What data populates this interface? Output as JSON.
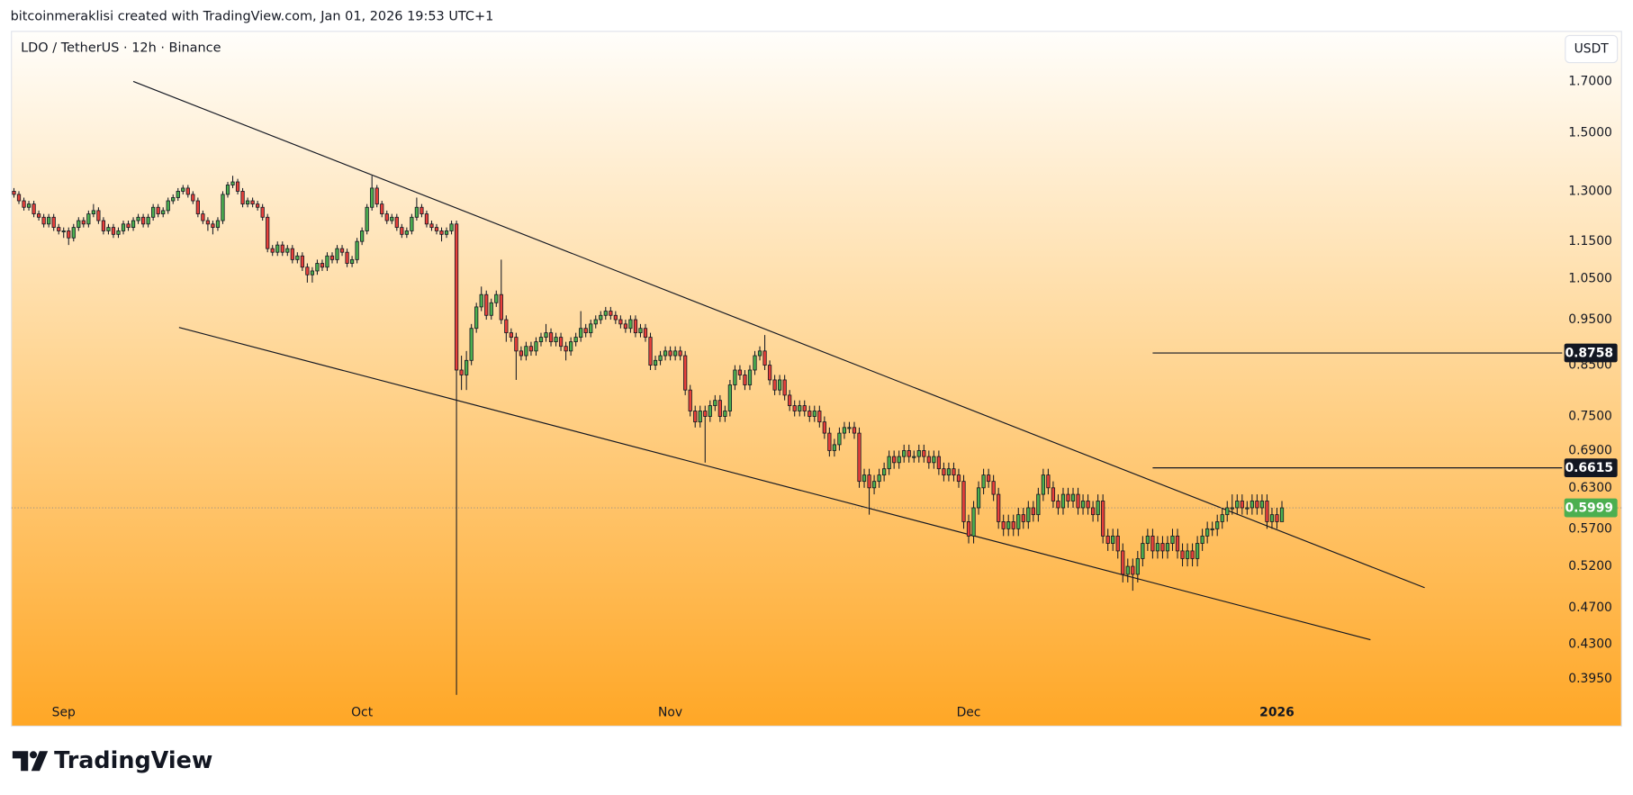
{
  "header": {
    "credit": "bitcoinmeraklisi created with TradingView.com, Jan 01, 2026 19:53 UTC+1"
  },
  "chart_data": {
    "type": "candlestick",
    "title": "LDO / TetherUS · 12h · Binance",
    "currency": "USDT",
    "log_scale": true,
    "up_color": "#4caf50",
    "down_color": "#e8403b",
    "open": [
      1.3,
      1.29,
      1.27,
      1.25,
      1.26,
      1.23,
      1.22,
      1.2,
      1.22,
      1.19,
      1.18,
      1.18,
      1.16,
      1.19,
      1.21,
      1.2,
      1.23,
      1.24,
      1.21,
      1.18,
      1.19,
      1.17,
      1.18,
      1.2,
      1.19,
      1.21,
      1.22,
      1.2,
      1.22,
      1.25,
      1.23,
      1.24,
      1.27,
      1.28,
      1.3,
      1.31,
      1.29,
      1.27,
      1.23,
      1.21,
      1.2,
      1.19,
      1.21,
      1.29,
      1.32,
      1.33,
      1.3,
      1.26,
      1.27,
      1.26,
      1.25,
      1.22,
      1.13,
      1.12,
      1.14,
      1.12,
      1.13,
      1.1,
      1.11,
      1.08,
      1.06,
      1.07,
      1.09,
      1.08,
      1.11,
      1.1,
      1.13,
      1.12,
      1.09,
      1.1,
      1.15,
      1.18,
      1.25,
      1.31,
      1.26,
      1.23,
      1.21,
      1.22,
      1.19,
      1.17,
      1.18,
      1.22,
      1.25,
      1.23,
      1.2,
      1.19,
      1.18,
      1.17,
      1.18,
      1.2,
      0.84,
      0.83,
      0.86,
      0.93,
      0.98,
      1.01,
      0.96,
      0.99,
      1.01,
      0.95,
      0.92,
      0.91,
      0.88,
      0.87,
      0.89,
      0.88,
      0.9,
      0.91,
      0.92,
      0.9,
      0.91,
      0.89,
      0.88,
      0.9,
      0.91,
      0.93,
      0.92,
      0.94,
      0.95,
      0.96,
      0.97,
      0.96,
      0.95,
      0.94,
      0.93,
      0.95,
      0.92,
      0.93,
      0.91,
      0.85,
      0.86,
      0.87,
      0.88,
      0.87,
      0.88,
      0.87,
      0.8,
      0.76,
      0.74,
      0.76,
      0.75,
      0.77,
      0.78,
      0.75,
      0.76,
      0.81,
      0.84,
      0.83,
      0.81,
      0.84,
      0.87,
      0.88,
      0.85,
      0.82,
      0.8,
      0.82,
      0.79,
      0.77,
      0.76,
      0.77,
      0.76,
      0.75,
      0.76,
      0.74,
      0.72,
      0.69,
      0.7,
      0.72,
      0.73,
      0.73,
      0.72,
      0.64,
      0.65,
      0.63,
      0.64,
      0.65,
      0.66,
      0.68,
      0.67,
      0.68,
      0.69,
      0.68,
      0.68,
      0.69,
      0.68,
      0.67,
      0.68,
      0.66,
      0.65,
      0.66,
      0.65,
      0.64,
      0.58,
      0.56,
      0.6,
      0.63,
      0.65,
      0.64,
      0.62,
      0.58,
      0.57,
      0.58,
      0.57,
      0.59,
      0.58,
      0.6,
      0.59,
      0.62,
      0.65,
      0.63,
      0.61,
      0.6,
      0.62,
      0.61,
      0.62,
      0.6,
      0.61,
      0.6,
      0.59,
      0.61,
      0.56,
      0.55,
      0.56,
      0.54,
      0.51,
      0.52,
      0.51,
      0.53,
      0.55,
      0.56,
      0.54,
      0.55,
      0.54,
      0.55,
      0.56,
      0.54,
      0.53,
      0.54,
      0.53,
      0.55,
      0.56,
      0.57,
      0.57,
      0.58,
      0.59,
      0.6,
      0.6,
      0.61,
      0.6,
      0.6,
      0.61,
      0.6,
      0.61,
      0.58,
      0.59,
      0.58
    ],
    "high": [
      1.31,
      1.3,
      1.28,
      1.27,
      1.27,
      1.24,
      1.23,
      1.23,
      1.23,
      1.2,
      1.19,
      1.19,
      1.2,
      1.22,
      1.22,
      1.24,
      1.26,
      1.25,
      1.22,
      1.2,
      1.2,
      1.19,
      1.21,
      1.21,
      1.22,
      1.23,
      1.23,
      1.23,
      1.26,
      1.26,
      1.25,
      1.28,
      1.29,
      1.31,
      1.32,
      1.32,
      1.3,
      1.28,
      1.24,
      1.22,
      1.21,
      1.22,
      1.3,
      1.33,
      1.35,
      1.34,
      1.31,
      1.28,
      1.28,
      1.27,
      1.26,
      1.23,
      1.14,
      1.15,
      1.15,
      1.14,
      1.14,
      1.12,
      1.12,
      1.09,
      1.08,
      1.1,
      1.1,
      1.12,
      1.12,
      1.14,
      1.14,
      1.13,
      1.11,
      1.16,
      1.19,
      1.26,
      1.35,
      1.32,
      1.27,
      1.24,
      1.23,
      1.23,
      1.2,
      1.19,
      1.23,
      1.28,
      1.26,
      1.24,
      1.21,
      1.2,
      1.19,
      1.19,
      1.21,
      1.21,
      0.87,
      0.88,
      0.94,
      0.99,
      1.03,
      1.02,
      1.0,
      1.02,
      1.1,
      0.96,
      0.93,
      0.92,
      0.89,
      0.9,
      0.9,
      0.91,
      0.92,
      0.94,
      0.93,
      0.92,
      0.92,
      0.9,
      0.91,
      0.92,
      0.97,
      0.94,
      0.95,
      0.96,
      0.97,
      0.98,
      0.98,
      0.97,
      0.96,
      0.95,
      0.96,
      0.96,
      0.94,
      0.94,
      0.92,
      0.87,
      0.88,
      0.89,
      0.89,
      0.89,
      0.89,
      0.88,
      0.81,
      0.77,
      0.77,
      0.77,
      0.78,
      0.79,
      0.79,
      0.77,
      0.82,
      0.85,
      0.85,
      0.84,
      0.85,
      0.88,
      0.89,
      0.915,
      0.86,
      0.83,
      0.83,
      0.83,
      0.8,
      0.78,
      0.78,
      0.78,
      0.77,
      0.77,
      0.77,
      0.75,
      0.73,
      0.71,
      0.73,
      0.74,
      0.74,
      0.74,
      0.73,
      0.66,
      0.66,
      0.65,
      0.66,
      0.67,
      0.69,
      0.69,
      0.69,
      0.7,
      0.7,
      0.69,
      0.7,
      0.7,
      0.69,
      0.69,
      0.69,
      0.67,
      0.67,
      0.67,
      0.66,
      0.65,
      0.59,
      0.61,
      0.64,
      0.66,
      0.66,
      0.65,
      0.63,
      0.59,
      0.59,
      0.59,
      0.6,
      0.6,
      0.61,
      0.61,
      0.63,
      0.66,
      0.66,
      0.64,
      0.62,
      0.63,
      0.63,
      0.63,
      0.63,
      0.62,
      0.62,
      0.61,
      0.62,
      0.62,
      0.57,
      0.57,
      0.57,
      0.55,
      0.53,
      0.53,
      0.54,
      0.56,
      0.57,
      0.57,
      0.56,
      0.56,
      0.56,
      0.57,
      0.57,
      0.55,
      0.55,
      0.55,
      0.56,
      0.57,
      0.58,
      0.58,
      0.59,
      0.6,
      0.61,
      0.62,
      0.62,
      0.62,
      0.61,
      0.62,
      0.62,
      0.62,
      0.62,
      0.6,
      0.6,
      0.61
    ],
    "low": [
      1.28,
      1.26,
      1.24,
      1.24,
      1.22,
      1.21,
      1.19,
      1.19,
      1.18,
      1.17,
      1.16,
      1.14,
      1.15,
      1.18,
      1.19,
      1.19,
      1.22,
      1.2,
      1.17,
      1.17,
      1.16,
      1.16,
      1.17,
      1.18,
      1.18,
      1.2,
      1.19,
      1.19,
      1.21,
      1.22,
      1.22,
      1.23,
      1.26,
      1.27,
      1.29,
      1.28,
      1.26,
      1.22,
      1.2,
      1.18,
      1.17,
      1.18,
      1.2,
      1.28,
      1.31,
      1.29,
      1.25,
      1.25,
      1.25,
      1.24,
      1.21,
      1.12,
      1.11,
      1.11,
      1.11,
      1.11,
      1.09,
      1.09,
      1.07,
      1.04,
      1.04,
      1.06,
      1.07,
      1.07,
      1.09,
      1.09,
      1.11,
      1.08,
      1.08,
      1.09,
      1.14,
      1.17,
      1.24,
      1.25,
      1.22,
      1.2,
      1.2,
      1.18,
      1.16,
      1.16,
      1.17,
      1.21,
      1.22,
      1.19,
      1.18,
      1.17,
      1.15,
      1.16,
      1.17,
      0.38,
      0.8,
      0.8,
      0.85,
      0.92,
      0.97,
      0.95,
      0.95,
      0.98,
      0.94,
      0.9,
      0.9,
      0.82,
      0.86,
      0.86,
      0.87,
      0.87,
      0.89,
      0.9,
      0.89,
      0.89,
      0.88,
      0.86,
      0.87,
      0.89,
      0.9,
      0.91,
      0.91,
      0.93,
      0.94,
      0.95,
      0.95,
      0.94,
      0.93,
      0.92,
      0.92,
      0.91,
      0.91,
      0.9,
      0.84,
      0.84,
      0.85,
      0.86,
      0.86,
      0.86,
      0.86,
      0.79,
      0.75,
      0.73,
      0.73,
      0.67,
      0.74,
      0.76,
      0.74,
      0.74,
      0.75,
      0.8,
      0.82,
      0.8,
      0.8,
      0.83,
      0.86,
      0.84,
      0.81,
      0.79,
      0.79,
      0.78,
      0.76,
      0.75,
      0.75,
      0.75,
      0.74,
      0.74,
      0.73,
      0.71,
      0.68,
      0.68,
      0.69,
      0.71,
      0.72,
      0.71,
      0.63,
      0.63,
      0.59,
      0.62,
      0.63,
      0.64,
      0.65,
      0.66,
      0.66,
      0.67,
      0.67,
      0.67,
      0.67,
      0.67,
      0.66,
      0.66,
      0.65,
      0.64,
      0.64,
      0.64,
      0.63,
      0.57,
      0.55,
      0.55,
      0.59,
      0.62,
      0.63,
      0.61,
      0.57,
      0.56,
      0.56,
      0.56,
      0.56,
      0.57,
      0.57,
      0.58,
      0.58,
      0.61,
      0.62,
      0.6,
      0.59,
      0.59,
      0.6,
      0.6,
      0.59,
      0.59,
      0.59,
      0.58,
      0.58,
      0.55,
      0.54,
      0.54,
      0.53,
      0.5,
      0.5,
      0.49,
      0.5,
      0.52,
      0.54,
      0.53,
      0.53,
      0.53,
      0.53,
      0.54,
      0.53,
      0.52,
      0.52,
      0.52,
      0.52,
      0.54,
      0.55,
      0.56,
      0.56,
      0.57,
      0.58,
      0.59,
      0.59,
      0.59,
      0.59,
      0.59,
      0.59,
      0.59,
      0.57,
      0.57,
      0.57,
      0.58
    ],
    "close": [
      1.29,
      1.27,
      1.25,
      1.26,
      1.23,
      1.22,
      1.2,
      1.22,
      1.19,
      1.18,
      1.18,
      1.16,
      1.19,
      1.21,
      1.2,
      1.23,
      1.24,
      1.21,
      1.18,
      1.19,
      1.17,
      1.18,
      1.2,
      1.19,
      1.21,
      1.22,
      1.2,
      1.22,
      1.25,
      1.23,
      1.24,
      1.27,
      1.28,
      1.3,
      1.31,
      1.29,
      1.27,
      1.23,
      1.21,
      1.2,
      1.19,
      1.21,
      1.29,
      1.32,
      1.33,
      1.3,
      1.26,
      1.27,
      1.26,
      1.25,
      1.22,
      1.13,
      1.12,
      1.14,
      1.12,
      1.13,
      1.1,
      1.11,
      1.08,
      1.06,
      1.07,
      1.09,
      1.08,
      1.11,
      1.1,
      1.13,
      1.12,
      1.09,
      1.1,
      1.15,
      1.18,
      1.25,
      1.31,
      1.26,
      1.23,
      1.21,
      1.22,
      1.19,
      1.17,
      1.18,
      1.22,
      1.25,
      1.23,
      1.2,
      1.19,
      1.18,
      1.17,
      1.18,
      1.2,
      0.84,
      0.83,
      0.86,
      0.93,
      0.98,
      1.01,
      0.96,
      0.99,
      1.01,
      0.95,
      0.92,
      0.91,
      0.88,
      0.87,
      0.89,
      0.88,
      0.9,
      0.91,
      0.92,
      0.9,
      0.91,
      0.89,
      0.88,
      0.9,
      0.91,
      0.93,
      0.92,
      0.94,
      0.95,
      0.96,
      0.97,
      0.96,
      0.95,
      0.94,
      0.93,
      0.95,
      0.92,
      0.93,
      0.91,
      0.85,
      0.86,
      0.87,
      0.88,
      0.87,
      0.88,
      0.87,
      0.8,
      0.76,
      0.74,
      0.76,
      0.75,
      0.77,
      0.78,
      0.75,
      0.76,
      0.81,
      0.84,
      0.83,
      0.81,
      0.84,
      0.87,
      0.88,
      0.85,
      0.82,
      0.8,
      0.82,
      0.79,
      0.77,
      0.76,
      0.77,
      0.76,
      0.75,
      0.76,
      0.74,
      0.72,
      0.69,
      0.7,
      0.72,
      0.73,
      0.73,
      0.72,
      0.64,
      0.65,
      0.63,
      0.64,
      0.65,
      0.66,
      0.68,
      0.67,
      0.68,
      0.69,
      0.68,
      0.68,
      0.69,
      0.68,
      0.67,
      0.68,
      0.66,
      0.65,
      0.66,
      0.65,
      0.64,
      0.58,
      0.56,
      0.6,
      0.63,
      0.65,
      0.64,
      0.62,
      0.58,
      0.57,
      0.58,
      0.57,
      0.59,
      0.58,
      0.6,
      0.59,
      0.62,
      0.65,
      0.63,
      0.61,
      0.6,
      0.62,
      0.61,
      0.62,
      0.6,
      0.61,
      0.6,
      0.59,
      0.61,
      0.56,
      0.55,
      0.56,
      0.54,
      0.51,
      0.52,
      0.51,
      0.53,
      0.55,
      0.56,
      0.54,
      0.55,
      0.54,
      0.55,
      0.56,
      0.54,
      0.53,
      0.54,
      0.53,
      0.55,
      0.56,
      0.57,
      0.57,
      0.58,
      0.59,
      0.6,
      0.6,
      0.61,
      0.6,
      0.6,
      0.61,
      0.6,
      0.61,
      0.58,
      0.59,
      0.58,
      0.5999
    ],
    "xlim": [
      -0.5,
      323.3
    ],
    "xticks": [
      {
        "value": 10,
        "label": "Sep"
      },
      {
        "value": 70,
        "label": "Oct"
      },
      {
        "value": 132,
        "label": "Nov"
      },
      {
        "value": 192,
        "label": "Dec"
      },
      {
        "value": 254,
        "label": "2026"
      }
    ],
    "ylim": [
      0.352,
      1.921
    ],
    "yticks": [
      {
        "value": 1.7,
        "label": "1.7000"
      },
      {
        "value": 1.5,
        "label": "1.5000"
      },
      {
        "value": 1.3,
        "label": "1.3000"
      },
      {
        "value": 1.15,
        "label": "1.1500"
      },
      {
        "value": 1.05,
        "label": "1.0500"
      },
      {
        "value": 0.95,
        "label": "0.9500"
      },
      {
        "value": 0.85,
        "label": "0.8500"
      },
      {
        "value": 0.75,
        "label": "0.7500"
      },
      {
        "value": 0.69,
        "label": "0.6900"
      },
      {
        "value": 0.63,
        "label": "0.6300"
      },
      {
        "value": 0.57,
        "label": "0.5700"
      },
      {
        "value": 0.52,
        "label": "0.5200"
      },
      {
        "value": 0.47,
        "label": "0.4700"
      },
      {
        "value": 0.43,
        "label": "0.4300"
      },
      {
        "value": 0.395,
        "label": "0.3950"
      }
    ],
    "trendlines": [
      {
        "points": [
          [
            24,
            1.7
          ],
          [
            283.7,
            0.4936
          ]
        ]
      },
      {
        "points": [
          [
            33.2,
            0.932
          ],
          [
            272.8,
            0.4347
          ]
        ]
      }
    ],
    "levels": [
      {
        "value": 0.8758,
        "from": 229
      },
      {
        "value": 0.6615,
        "from": 229
      }
    ],
    "last_price": 0.5999,
    "last_color": "#4caf50"
  },
  "footer": {
    "brand": "TradingView"
  }
}
